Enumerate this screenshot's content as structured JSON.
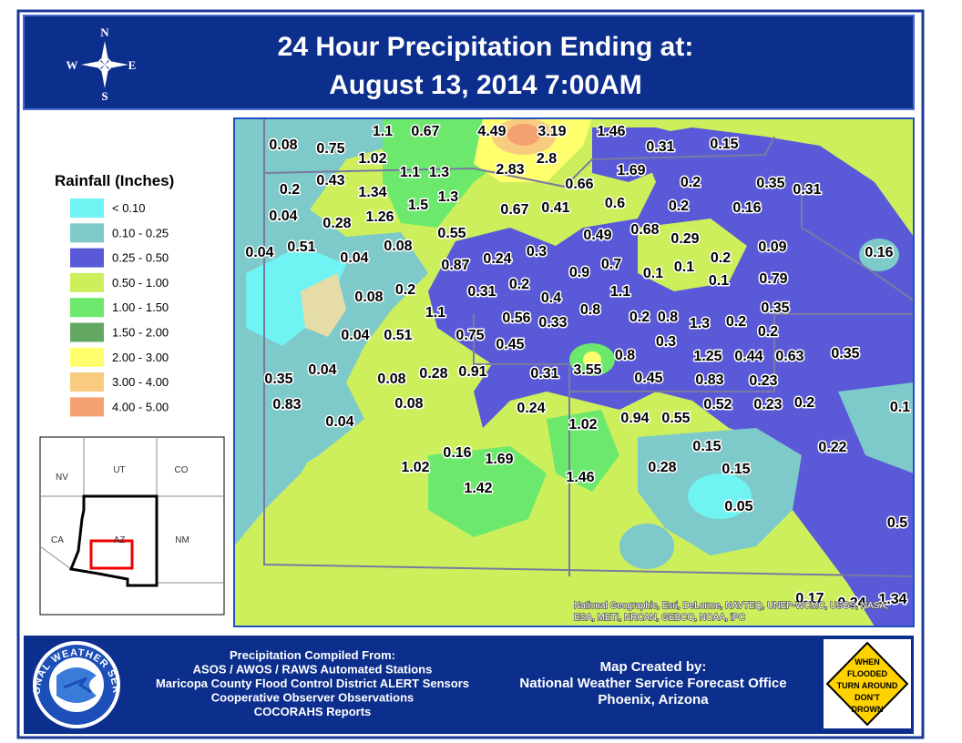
{
  "header": {
    "title_lines": [
      "24 Hour Precipitation Ending at:",
      "August 13, 2014 7:00AM"
    ]
  },
  "compass": {
    "n": "N",
    "s": "S",
    "e": "E",
    "w": "W"
  },
  "legend": {
    "title": "Rainfall (Inches)",
    "items": [
      {
        "label": "< 0.10",
        "color": "#6ff3f3"
      },
      {
        "label": "0.10 - 0.25",
        "color": "#7ec9c9"
      },
      {
        "label": "0.25 - 0.50",
        "color": "#5a5ad8"
      },
      {
        "label": "0.50 - 1.00",
        "color": "#cdef5c"
      },
      {
        "label": "1.00 - 1.50",
        "color": "#6ce96c"
      },
      {
        "label": "1.50 - 2.00",
        "color": "#62a862"
      },
      {
        "label": "2.00 - 3.00",
        "color": "#ffff6e"
      },
      {
        "label": "3.00 - 4.00",
        "color": "#f8cb7e"
      },
      {
        "label": "4.00 - 5.00",
        "color": "#f5a070"
      }
    ]
  },
  "inset": {
    "states": [
      "NV",
      "UT",
      "CO",
      "CA",
      "AZ",
      "NM"
    ]
  },
  "map": {
    "values": [
      "1.1",
      "0.67",
      "4.49",
      "3.19",
      "1.46",
      "0.08",
      "0.75",
      "1.02",
      "0.31",
      "0.15",
      "1.1",
      "1.3",
      "2.83",
      "2.8",
      "1.69",
      "0.43",
      "0.2",
      "1.34",
      "0.66",
      "0.2",
      "0.35",
      "0.31",
      "1.5",
      "1.3",
      "0.67",
      "0.41",
      "0.6",
      "0.2",
      "0.16",
      "0.04",
      "0.28",
      "1.26",
      "0.55",
      "0.49",
      "0.68",
      "0.29",
      "0.04",
      "0.51",
      "0.04",
      "0.08",
      "0.87",
      "0.24",
      "0.3",
      "0.09",
      "0.16",
      "0.9",
      "0.7",
      "0.1",
      "0.1",
      "0.2",
      "0.08",
      "0.2",
      "0.31",
      "0.2",
      "0.4",
      "1.1",
      "0.1",
      "0.79",
      "1.1",
      "0.56",
      "0.33",
      "0.8",
      "0.35",
      "0.2",
      "0.8",
      "1.3",
      "0.2",
      "0.2",
      "0.04",
      "0.51",
      "0.75",
      "0.45",
      "0.3",
      "0.8",
      "1.25",
      "0.44",
      "0.63",
      "0.35",
      "0.35",
      "0.04",
      "0.08",
      "0.28",
      "0.91",
      "0.31",
      "3.55",
      "0.45",
      "0.83",
      "0.23",
      "0.83",
      "0.08",
      "0.24",
      "0.52",
      "0.23",
      "0.2",
      "0.1",
      "0.04",
      "1.02",
      "0.94",
      "0.55",
      "0.15",
      "0.22",
      "0.16",
      "1.69",
      "1.02",
      "0.28",
      "0.15",
      "1.42",
      "1.46",
      "0.05",
      "0.5",
      "0.17",
      "0.24",
      "1.34"
    ],
    "attribution": [
      "National Geographic, Esri, DeLorme, NAVTEQ, UNEP-WCMC, USGS, NASA,",
      "ESA, METI, NRCAN, GEBCO, NOAA, iPC"
    ]
  },
  "footer": {
    "sources": [
      "Precipitation Compiled From:",
      "ASOS / AWOS / RAWS Automated Stations",
      "Maricopa County Flood Control District ALERT Sensors",
      "Cooperative Observer Observations",
      "COCORAHS Reports"
    ],
    "created": [
      "Map Created by:",
      "National Weather Service Forecast Office",
      "Phoenix, Arizona"
    ],
    "logo": "NATIONAL WEATHER SERVICE",
    "sign": [
      "WHEN",
      "FLOODED",
      "TURN AROUND",
      "DON'T",
      "DROWN"
    ]
  }
}
